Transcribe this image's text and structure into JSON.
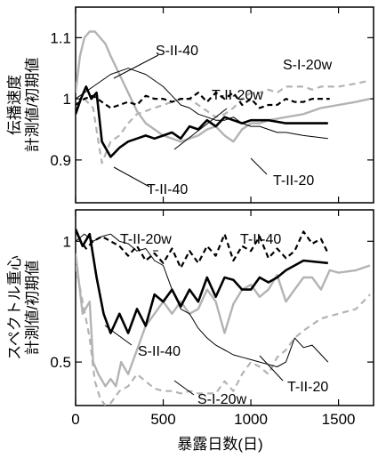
{
  "chart_data": [
    {
      "type": "line",
      "ylabel_lines": [
        "伝播速度",
        "計測値/初期値"
      ],
      "xlim": [
        0,
        1700
      ],
      "ylim": [
        0.83,
        1.15
      ],
      "yticks": [
        0.9,
        1,
        1.1
      ],
      "ytick_labels": [
        "0.9",
        "1",
        "1.1"
      ],
      "series": [
        {
          "name": "S-II-40",
          "style": "gray-solid",
          "x": [
            0,
            25,
            50,
            80,
            110,
            140,
            170,
            200,
            250,
            300,
            350,
            400,
            450,
            500,
            550,
            600,
            650,
            700,
            750,
            800,
            850,
            900,
            950,
            1000,
            1050,
            1100,
            1200,
            1300,
            1400,
            1500,
            1600,
            1680
          ],
          "y": [
            1.01,
            1.07,
            1.1,
            1.11,
            1.11,
            1.1,
            1.09,
            1.07,
            1.04,
            1.01,
            0.98,
            0.96,
            0.95,
            0.94,
            0.935,
            0.93,
            0.935,
            0.94,
            0.95,
            0.955,
            0.94,
            0.93,
            0.95,
            0.96,
            0.96,
            0.965,
            0.97,
            0.975,
            0.985,
            0.99,
            0.995,
            1.0
          ]
        },
        {
          "name": "S-I-20w",
          "style": "gray-dashed",
          "x": [
            0,
            50,
            100,
            130,
            150,
            200,
            250,
            300,
            350,
            400,
            450,
            500,
            550,
            600,
            650,
            700,
            750,
            800,
            850,
            900,
            950,
            1000,
            1050,
            1100,
            1150,
            1200,
            1300,
            1350,
            1400,
            1500,
            1600,
            1680
          ],
          "y": [
            0.99,
            1.0,
            0.985,
            0.93,
            0.895,
            0.93,
            0.94,
            0.96,
            0.975,
            0.98,
            0.985,
            0.99,
            0.995,
            1.0,
            1.0,
            0.99,
            0.98,
            0.97,
            0.975,
            0.985,
            1.0,
            1.01,
            1.01,
            1.015,
            1.01,
            1.02,
            1.02,
            1.015,
            1.02,
            1.02,
            1.025,
            1.03
          ]
        },
        {
          "name": "T-II-20w",
          "style": "black-dashed",
          "x": [
            0,
            50,
            100,
            150,
            200,
            250,
            300,
            350,
            400,
            450,
            500,
            550,
            600,
            650,
            700,
            750,
            800,
            850,
            900,
            950,
            1000,
            1050,
            1100,
            1150,
            1200,
            1250,
            1300,
            1350,
            1400,
            1450
          ],
          "y": [
            0.99,
            1.0,
            1.005,
            0.995,
            0.985,
            0.99,
            0.995,
            0.99,
            1.005,
            1.0,
            1.0,
            0.995,
            1.0,
            1.0,
            1.01,
            0.995,
            1.01,
            1.0,
            1.01,
            0.99,
            1.0,
            0.985,
            0.99,
            0.99,
            1.0,
            0.995,
            0.995,
            1.0,
            1.0,
            1.0
          ]
        },
        {
          "name": "T-II-40",
          "style": "black-thick",
          "x": [
            0,
            30,
            60,
            90,
            120,
            150,
            200,
            250,
            300,
            350,
            400,
            450,
            500,
            550,
            600,
            650,
            700,
            750,
            800,
            850,
            900,
            950,
            1000,
            1100,
            1200,
            1300,
            1440
          ],
          "y": [
            0.975,
            1.0,
            1.02,
            1.0,
            1.01,
            0.93,
            0.905,
            0.92,
            0.93,
            0.935,
            0.94,
            0.935,
            0.94,
            0.945,
            0.935,
            0.955,
            0.95,
            0.965,
            0.955,
            0.97,
            0.965,
            0.96,
            0.965,
            0.965,
            0.96,
            0.96,
            0.96
          ]
        },
        {
          "name": "T-II-20",
          "style": "black-thin",
          "x": [
            0,
            50,
            100,
            150,
            200,
            250,
            300,
            350,
            400,
            450,
            500,
            550,
            600,
            650,
            700,
            750,
            800,
            850,
            900,
            950,
            1000,
            1050,
            1100,
            1150,
            1200,
            1300,
            1440
          ],
          "y": [
            1.0,
            1.01,
            1.02,
            1.03,
            1.04,
            1.045,
            1.05,
            1.045,
            1.04,
            1.03,
            1.02,
            1.005,
            0.99,
            0.985,
            0.975,
            0.97,
            0.965,
            0.965,
            0.97,
            0.96,
            0.955,
            0.955,
            0.95,
            0.945,
            0.945,
            0.94,
            0.935
          ]
        }
      ],
      "annotations": [
        {
          "text": "S-II-40",
          "series": "S-II-40"
        },
        {
          "text": "T-II-20w",
          "series": "T-II-20w"
        },
        {
          "text": "S-I-20w",
          "series": "S-I-20w"
        },
        {
          "text": "T-II-40",
          "series": "T-II-40"
        },
        {
          "text": "T-II-20",
          "series": "T-II-20"
        }
      ]
    },
    {
      "type": "line",
      "ylabel_lines": [
        "スペクトル重心",
        "計測値/初期値"
      ],
      "xlabel": "暴露日数(日)",
      "xlim": [
        0,
        1700
      ],
      "ylim": [
        0.32,
        1.13
      ],
      "xticks": [
        0,
        500,
        1000,
        1500
      ],
      "xtick_labels": [
        "0",
        "500",
        "1000",
        "1500"
      ],
      "yticks": [
        0.5,
        1
      ],
      "ytick_labels": [
        "0.5",
        "1"
      ],
      "series": [
        {
          "name": "S-II-40",
          "style": "gray-solid",
          "x": [
            0,
            40,
            80,
            100,
            130,
            170,
            200,
            230,
            260,
            300,
            350,
            400,
            450,
            500,
            550,
            600,
            650,
            700,
            750,
            800,
            850,
            900,
            950,
            1000,
            1050,
            1100,
            1150,
            1200,
            1250,
            1300,
            1350,
            1400,
            1450,
            1500,
            1600,
            1680
          ],
          "y": [
            0.95,
            0.7,
            0.75,
            0.5,
            0.45,
            0.4,
            0.43,
            0.4,
            0.5,
            0.45,
            0.55,
            0.65,
            0.7,
            0.75,
            0.7,
            0.75,
            0.7,
            0.72,
            0.8,
            0.75,
            0.62,
            0.74,
            0.8,
            0.82,
            0.77,
            0.8,
            0.86,
            0.75,
            0.8,
            0.85,
            0.85,
            0.8,
            0.88,
            0.87,
            0.88,
            0.9
          ]
        },
        {
          "name": "S-I-20w",
          "style": "gray-dashed",
          "x": [
            0,
            40,
            80,
            110,
            140,
            170,
            200,
            250,
            300,
            350,
            400,
            450,
            500,
            550,
            600,
            650,
            700,
            750,
            800,
            850,
            900,
            950,
            1000,
            1050,
            1100,
            1150,
            1200,
            1250,
            1300,
            1400,
            1500,
            1600,
            1680
          ],
          "y": [
            0.9,
            0.75,
            0.6,
            0.42,
            0.35,
            0.32,
            0.33,
            0.38,
            0.4,
            0.45,
            0.42,
            0.39,
            0.38,
            0.38,
            0.37,
            0.38,
            0.37,
            0.37,
            0.37,
            0.42,
            0.38,
            0.45,
            0.5,
            0.48,
            0.45,
            0.52,
            0.55,
            0.6,
            0.63,
            0.68,
            0.7,
            0.72,
            0.78
          ]
        },
        {
          "name": "T-II-20w",
          "style": "black-dashed",
          "x": [
            0,
            30,
            60,
            100,
            150,
            200,
            250,
            300,
            350,
            400,
            450,
            500,
            550,
            600,
            650,
            700,
            750,
            800,
            850,
            900,
            950,
            1000,
            1050,
            1100,
            1150,
            1200,
            1250,
            1300,
            1350,
            1400,
            1440
          ],
          "y": [
            1.05,
            1.0,
            0.97,
            1.0,
            1.02,
            1.0,
            0.98,
            0.94,
            0.98,
            0.92,
            0.95,
            0.91,
            0.97,
            0.89,
            0.96,
            0.91,
            0.98,
            0.94,
            1.03,
            0.92,
            0.98,
            0.96,
            1.02,
            0.93,
            0.97,
            0.93,
            0.96,
            1.04,
            0.99,
            1.01,
            0.95
          ]
        },
        {
          "name": "T-II-40",
          "style": "black-thick",
          "x": [
            0,
            40,
            80,
            120,
            160,
            200,
            250,
            300,
            350,
            400,
            450,
            500,
            550,
            600,
            650,
            700,
            750,
            800,
            850,
            900,
            950,
            1000,
            1050,
            1100,
            1150,
            1200,
            1250,
            1300,
            1440
          ],
          "y": [
            1.05,
            0.98,
            1.03,
            0.85,
            0.7,
            0.62,
            0.7,
            0.62,
            0.72,
            0.65,
            0.78,
            0.75,
            0.8,
            0.73,
            0.8,
            0.75,
            0.85,
            0.77,
            0.85,
            0.84,
            0.8,
            0.8,
            0.85,
            0.83,
            0.85,
            0.88,
            0.9,
            0.92,
            0.91
          ]
        },
        {
          "name": "T-II-20",
          "style": "black-thin",
          "x": [
            0,
            50,
            100,
            150,
            200,
            250,
            300,
            350,
            400,
            450,
            500,
            550,
            600,
            650,
            700,
            750,
            800,
            850,
            900,
            950,
            1000,
            1050,
            1100,
            1150,
            1200,
            1250,
            1300,
            1350,
            1440
          ],
          "y": [
            1.0,
            1.03,
            1.0,
            1.02,
            1.03,
            1.0,
            0.99,
            0.96,
            0.97,
            0.92,
            0.9,
            0.8,
            0.72,
            0.7,
            0.64,
            0.6,
            0.57,
            0.55,
            0.53,
            0.52,
            0.51,
            0.5,
            0.49,
            0.48,
            0.5,
            0.6,
            0.56,
            0.57,
            0.5
          ]
        }
      ],
      "annotations": [
        {
          "text": "T-II-20w",
          "series": "T-II-20w"
        },
        {
          "text": "T-II-40",
          "series": "T-II-40"
        },
        {
          "text": "S-II-40",
          "series": "S-II-40"
        },
        {
          "text": "S-I-20w",
          "series": "S-I-20w"
        },
        {
          "text": "T-II-20",
          "series": "T-II-20"
        }
      ]
    }
  ]
}
